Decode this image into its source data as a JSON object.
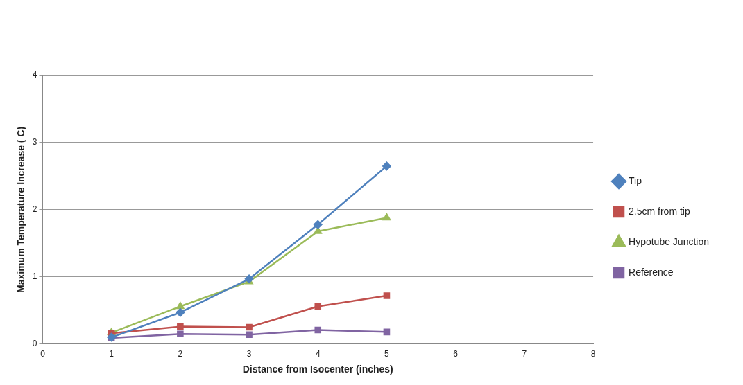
{
  "chart_data": {
    "type": "line",
    "xlabel": "Distance from Isocenter (inches)",
    "ylabel": "Maximum Temperature Increase ( C)",
    "x": [
      1,
      2,
      3,
      4,
      5
    ],
    "series": [
      {
        "name": "Tip",
        "color": "#4f81bd",
        "marker": "diamond",
        "values": [
          0.1,
          0.47,
          0.97,
          1.78,
          2.65
        ]
      },
      {
        "name": "2.5cm from tip",
        "color": "#c0504d",
        "marker": "square",
        "values": [
          0.16,
          0.26,
          0.25,
          0.56,
          0.72
        ]
      },
      {
        "name": "Hypotube Junction",
        "color": "#9bbb59",
        "marker": "triangle",
        "values": [
          0.17,
          0.56,
          0.93,
          1.68,
          1.88
        ]
      },
      {
        "name": "Reference",
        "color": "#8064a2",
        "marker": "square",
        "values": [
          0.09,
          0.15,
          0.14,
          0.21,
          0.18
        ]
      }
    ],
    "xlim": [
      0,
      8
    ],
    "xticks": [
      0,
      1,
      2,
      3,
      4,
      5,
      6,
      7,
      8
    ],
    "ylim": [
      0,
      4
    ],
    "yticks": [
      0,
      1,
      2,
      3,
      4
    ],
    "grid": "y",
    "legend": "right",
    "line_style": "solid"
  }
}
